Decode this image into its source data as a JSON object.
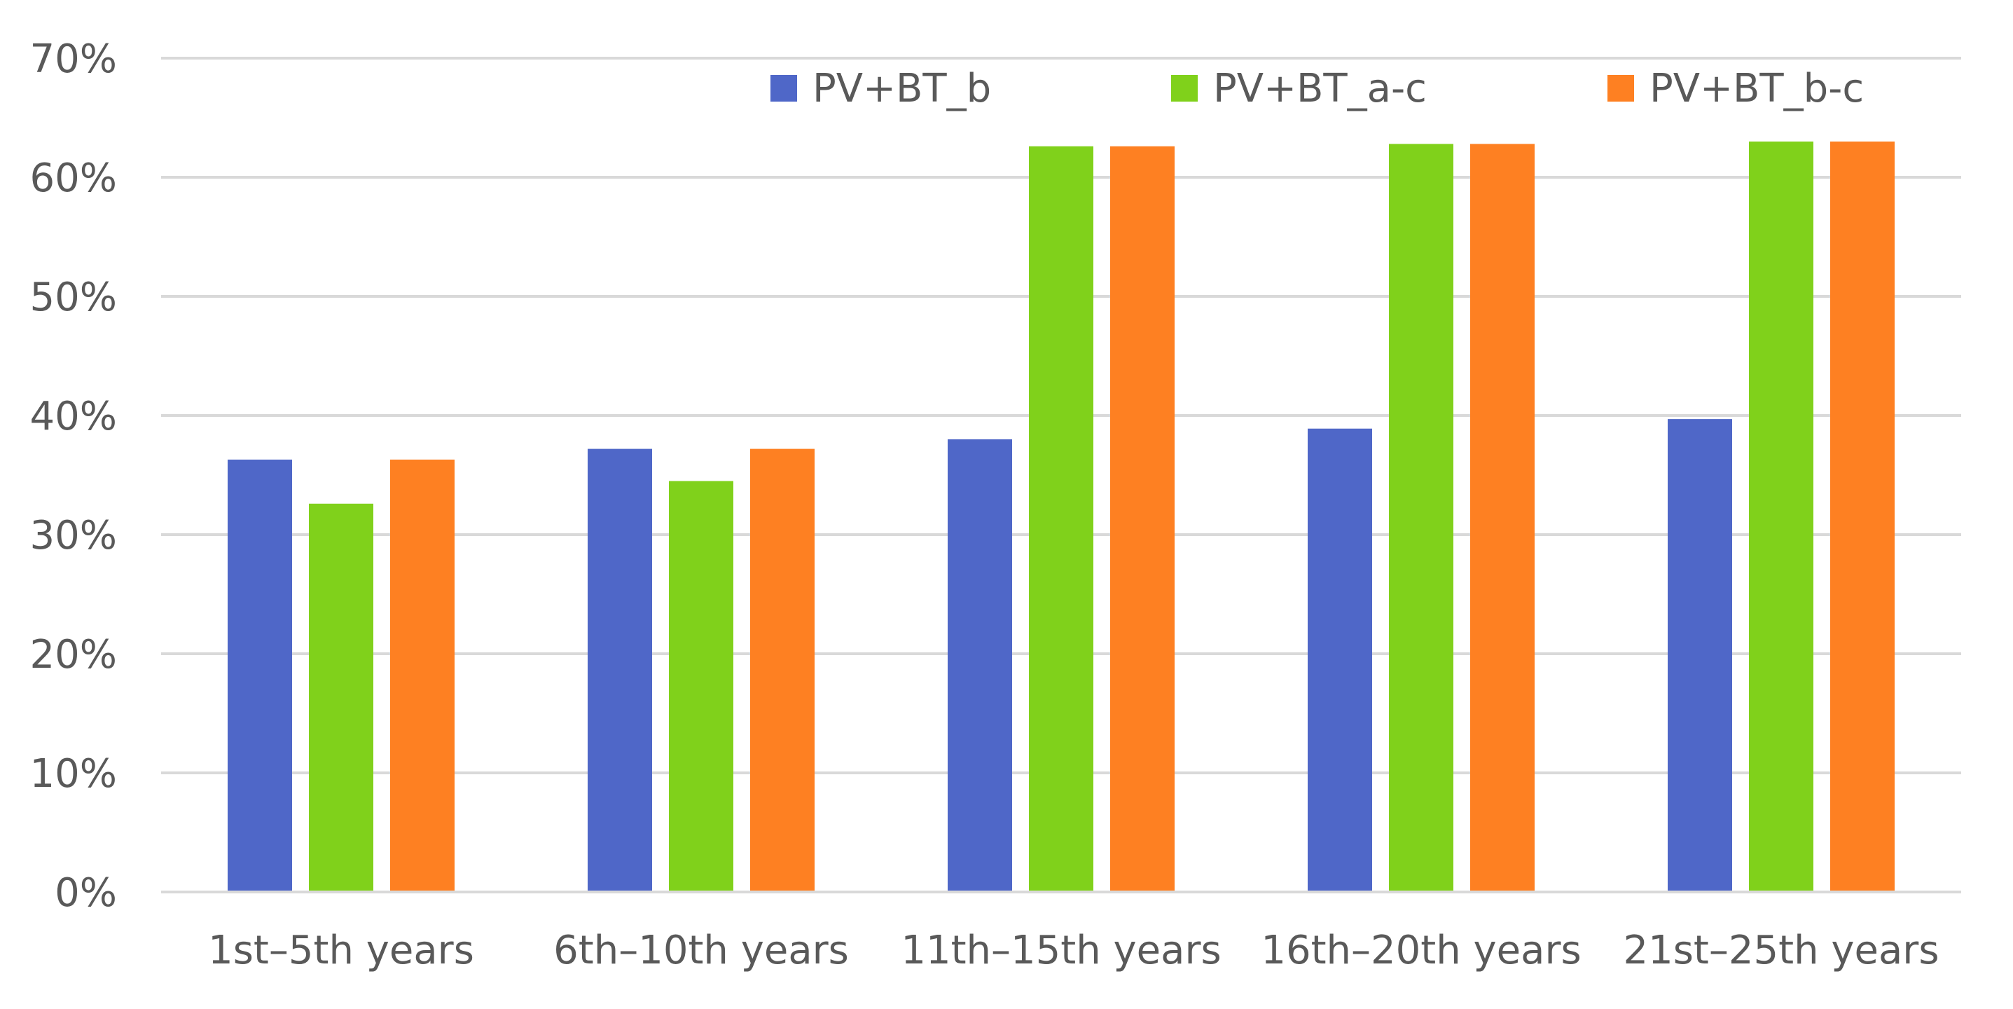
{
  "chart_data": {
    "type": "bar",
    "title": "",
    "xlabel": "",
    "ylabel": "",
    "categories": [
      "1st–5th years",
      "6th–10th years",
      "11th–15th years",
      "16th–20th years",
      "21st–25th years"
    ],
    "series": [
      {
        "name": "PV+BT_b",
        "color": "#4f67c8",
        "values": [
          36.3,
          37.2,
          38.0,
          38.9,
          39.7
        ]
      },
      {
        "name": "PV+BT_a-c",
        "color": "#80d11b",
        "values": [
          32.6,
          34.5,
          62.6,
          62.8,
          63.0
        ]
      },
      {
        "name": "PV+BT_b-c",
        "color": "#fe8022",
        "values": [
          36.3,
          37.2,
          62.6,
          62.8,
          63.0
        ]
      }
    ],
    "ylim": [
      0,
      70
    ],
    "yticks": [
      0,
      10,
      20,
      30,
      40,
      50,
      60,
      70
    ],
    "ytick_suffix": "%",
    "grid": true,
    "gridline_color": "#d9d9d9",
    "legend_position": "top-right"
  }
}
